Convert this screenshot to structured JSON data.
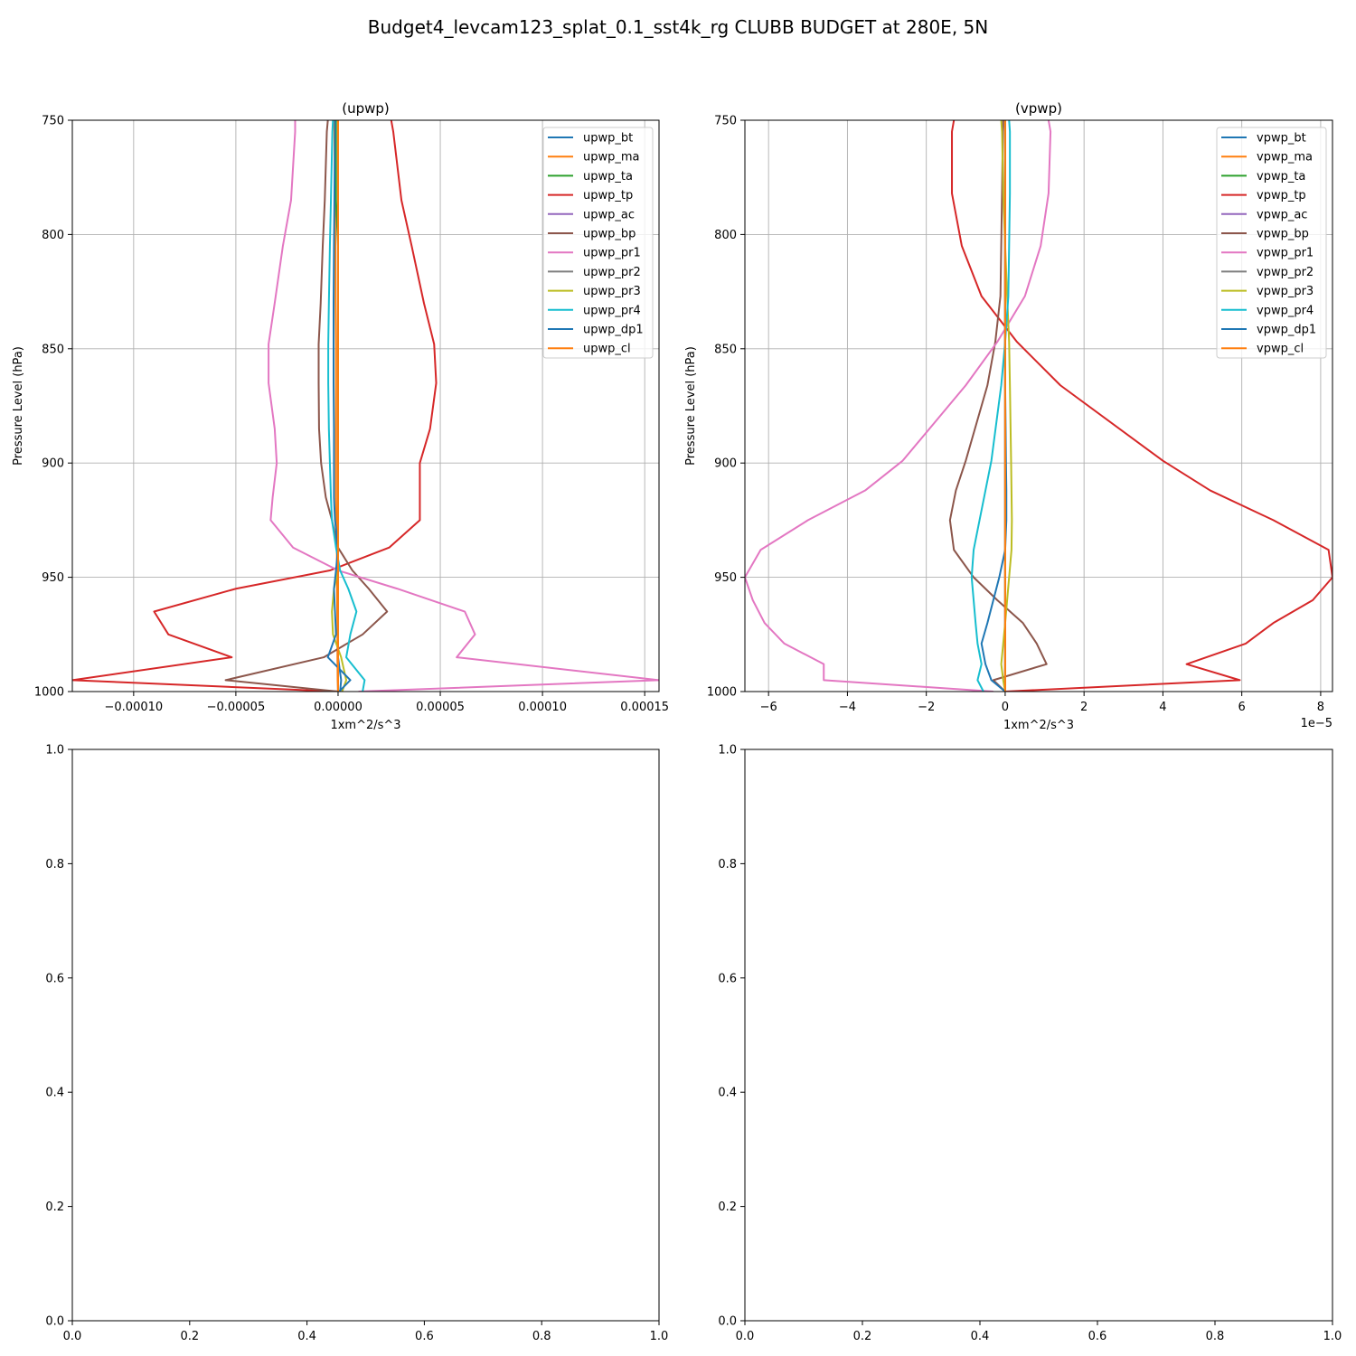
{
  "figure": {
    "suptitle": "Budget4_levcam123_splat_0.1_sst4k_rg CLUBB BUDGET at 280E, 5N"
  },
  "chart_data": [
    {
      "type": "line",
      "title": "(upwp)",
      "xlabel": "1xm^2/s^3",
      "ylabel": "Pressure Level (hPa)",
      "x_offset_label": "",
      "xlim": [
        -0.00013,
        0.000157
      ],
      "ylim": [
        1000,
        750
      ],
      "y_inverted": true,
      "xticks": [
        -0.0001,
        -5e-05,
        0,
        5e-05,
        0.0001,
        0.00015
      ],
      "xtick_labels": [
        "−0.00010",
        "−0.00005",
        "0.00000",
        "0.00005",
        "0.00010",
        "0.00015"
      ],
      "yticks": [
        750,
        800,
        850,
        900,
        950,
        1000
      ],
      "ytick_labels": [
        "750",
        "800",
        "850",
        "900",
        "950",
        "1000"
      ],
      "grid": true,
      "legend_position": "upper right",
      "levels": [
        750,
        755,
        785,
        805,
        830,
        848,
        865,
        885,
        900,
        915,
        925,
        937,
        947,
        955,
        965,
        975,
        985,
        995,
        1000
      ],
      "series": [
        {
          "name": "upwp_bt",
          "color": "#1f77b4",
          "values": [
            0,
            0,
            0,
            0,
            0,
            0,
            0,
            0,
            0,
            0,
            0,
            0,
            0,
            0,
            0,
            0,
            0,
            1.5e-06,
            1e-06
          ]
        },
        {
          "name": "upwp_ma",
          "color": "#ff7f0e",
          "values": [
            -2e-06,
            -1.8e-06,
            -1.5e-06,
            -1.3e-06,
            -1.2e-06,
            -1e-06,
            -1e-06,
            -1e-06,
            -1e-06,
            -1e-06,
            -8e-07,
            -6e-07,
            -5e-07,
            -5e-07,
            -4e-07,
            -3e-07,
            -3e-07,
            -2e-07,
            0
          ]
        },
        {
          "name": "upwp_ta",
          "color": "#2ca02c",
          "values": [
            -1e-06,
            -1e-06,
            -1e-06,
            0,
            0,
            0,
            0,
            0,
            0,
            0,
            0,
            0,
            0,
            0,
            0,
            0,
            0,
            0,
            0
          ]
        },
        {
          "name": "upwp_tp",
          "color": "#d62728",
          "values": [
            2.6e-05,
            2.7e-05,
            3.1e-05,
            3.6e-05,
            4.2e-05,
            4.7e-05,
            4.8e-05,
            4.5e-05,
            4e-05,
            4e-05,
            4e-05,
            2.5e-05,
            -4e-06,
            -5e-05,
            -9e-05,
            -8.3e-05,
            -5.2e-05,
            -0.00013,
            0
          ]
        },
        {
          "name": "upwp_ac",
          "color": "#9467bd",
          "values": [
            0,
            0,
            0,
            0,
            0,
            0,
            0,
            0,
            0,
            0,
            0,
            0,
            0,
            0,
            0,
            0,
            0,
            0,
            0
          ]
        },
        {
          "name": "upwp_bp",
          "color": "#8c564b",
          "values": [
            -5e-06,
            -5.5e-06,
            -6.5e-06,
            -7.5e-06,
            -8.5e-06,
            -9.5e-06,
            -9.5e-06,
            -9.3e-06,
            -8.3e-06,
            -6e-06,
            -3e-06,
            0,
            7e-06,
            1.5e-05,
            2.4e-05,
            1.2e-05,
            -7e-06,
            -5.5e-05,
            0
          ]
        },
        {
          "name": "upwp_pr1",
          "color": "#e377c2",
          "values": [
            -2.1e-05,
            -2.1e-05,
            -2.3e-05,
            -2.7e-05,
            -3.1e-05,
            -3.4e-05,
            -3.4e-05,
            -3.1e-05,
            -3e-05,
            -3.2e-05,
            -3.3e-05,
            -2.2e-05,
            0,
            2.9e-05,
            6.2e-05,
            6.7e-05,
            5.8e-05,
            0.000157,
            1e-05
          ]
        },
        {
          "name": "upwp_pr2",
          "color": "#7f7f7f",
          "values": [
            0,
            0,
            0,
            0,
            0,
            0,
            0,
            0,
            0,
            0,
            0,
            0,
            0,
            0,
            0,
            0,
            0,
            0,
            0
          ]
        },
        {
          "name": "upwp_pr3",
          "color": "#bcbd22",
          "values": [
            0,
            0,
            0,
            0,
            0,
            0,
            0,
            0,
            0,
            0,
            0,
            0,
            0,
            -2e-06,
            -3e-06,
            -2.5e-06,
            1.5e-06,
            4e-06,
            2e-06
          ]
        },
        {
          "name": "upwp_pr4",
          "color": "#17becf",
          "values": [
            -2.5e-06,
            -2.8e-06,
            -3.5e-06,
            -4e-06,
            -4.5e-06,
            -4.8e-06,
            -4.8e-06,
            -4.5e-06,
            -4e-06,
            -3.5e-06,
            -3e-06,
            -1e-06,
            1e-06,
            5e-06,
            9e-06,
            6e-06,
            4e-06,
            1.3e-05,
            1.2e-05
          ]
        },
        {
          "name": "upwp_dp1",
          "color": "#1f77b4",
          "values": [
            -1.5e-06,
            -1.5e-06,
            -1.8e-06,
            -2e-06,
            -2.2e-06,
            -2.2e-06,
            -2.2e-06,
            -2e-06,
            -2e-06,
            -2e-06,
            -1.5e-06,
            0,
            -1e-06,
            -2e-06,
            -1.5e-06,
            -1e-06,
            -5e-06,
            6e-06,
            5e-07
          ]
        },
        {
          "name": "upwp_cl",
          "color": "#ff7f0e",
          "values": [
            0,
            0,
            0,
            0,
            0,
            0,
            0,
            0,
            0,
            0,
            0,
            0,
            0,
            0,
            0,
            0,
            0,
            0,
            0
          ]
        }
      ]
    },
    {
      "type": "line",
      "title": "(vpwp)",
      "xlabel": "1xm^2/s^3",
      "ylabel": "Pressure Level (hPa)",
      "x_offset_label": "1e−5",
      "xlim": [
        -6.6,
        8.3
      ],
      "ylim": [
        1000,
        750
      ],
      "y_inverted": true,
      "x_scale_note": "x values in units of 1e-5",
      "xticks": [
        -6,
        -4,
        -2,
        0,
        2,
        4,
        6,
        8
      ],
      "xtick_labels": [
        "−6",
        "−4",
        "−2",
        "0",
        "2",
        "4",
        "6",
        "8"
      ],
      "yticks": [
        750,
        800,
        850,
        900,
        950,
        1000
      ],
      "ytick_labels": [
        "750",
        "800",
        "850",
        "900",
        "950",
        "1000"
      ],
      "grid": true,
      "legend_position": "upper right",
      "levels": [
        750,
        755,
        782,
        805,
        827,
        847,
        866,
        899,
        912,
        925,
        938,
        950,
        960,
        970,
        979,
        988,
        995,
        1000
      ],
      "series": [
        {
          "name": "vpwp_bt",
          "color": "#1f77b4",
          "values": [
            0,
            0,
            0,
            0,
            0,
            0,
            0,
            0,
            0,
            0,
            0,
            0,
            0,
            0,
            0,
            0,
            0,
            0
          ]
        },
        {
          "name": "vpwp_ma",
          "color": "#ff7f0e",
          "values": [
            0,
            0,
            0,
            0,
            0,
            0,
            0,
            0,
            0,
            0,
            0,
            0,
            0,
            0,
            0,
            0,
            0,
            0
          ]
        },
        {
          "name": "vpwp_ta",
          "color": "#2ca02c",
          "values": [
            0,
            0,
            0,
            0,
            0,
            0,
            0,
            0,
            0,
            0,
            0,
            0,
            0,
            0,
            0,
            0,
            0,
            0
          ]
        },
        {
          "name": "vpwp_tp",
          "color": "#d62728",
          "values": [
            -1.3,
            -1.35,
            -1.35,
            -1.1,
            -0.6,
            0.3,
            1.4,
            4.0,
            5.2,
            6.8,
            8.2,
            8.3,
            7.8,
            6.8,
            6.1,
            4.6,
            5.95,
            0.0
          ]
        },
        {
          "name": "vpwp_ac",
          "color": "#9467bd",
          "values": [
            0,
            0,
            0,
            0,
            0,
            0,
            0,
            0,
            0,
            0,
            0,
            0,
            0,
            0,
            0,
            0,
            0,
            0
          ]
        },
        {
          "name": "vpwp_bp",
          "color": "#8c564b",
          "values": [
            -0.05,
            -0.06,
            -0.08,
            -0.1,
            -0.12,
            -0.25,
            -0.45,
            -1.0,
            -1.25,
            -1.4,
            -1.3,
            -0.8,
            -0.2,
            0.45,
            0.8,
            1.05,
            -0.3,
            0
          ]
        },
        {
          "name": "vpwp_pr1",
          "color": "#e377c2",
          "values": [
            1.1,
            1.15,
            1.1,
            0.9,
            0.5,
            -0.2,
            -1.0,
            -2.6,
            -3.55,
            -5.0,
            -6.2,
            -6.6,
            -6.4,
            -6.1,
            -5.6,
            -4.6,
            -4.6,
            -0.3
          ]
        },
        {
          "name": "vpwp_pr2",
          "color": "#7f7f7f",
          "values": [
            0,
            0,
            0,
            0,
            0,
            0,
            0,
            0,
            0,
            0,
            0,
            0,
            0,
            0,
            0,
            0,
            0,
            0
          ]
        },
        {
          "name": "vpwp_pr3",
          "color": "#bcbd22",
          "values": [
            -0.1,
            -0.08,
            -0.05,
            0,
            0.05,
            0.1,
            0.12,
            0.15,
            0.16,
            0.17,
            0.16,
            0.1,
            0.05,
            0,
            -0.05,
            -0.1,
            -0.05,
            0
          ]
        },
        {
          "name": "vpwp_pr4",
          "color": "#17becf",
          "values": [
            0.1,
            0.12,
            0.12,
            0.1,
            0.08,
            0,
            -0.1,
            -0.35,
            -0.5,
            -0.65,
            -0.8,
            -0.85,
            -0.8,
            -0.75,
            -0.7,
            -0.6,
            -0.7,
            -0.55
          ]
        },
        {
          "name": "vpwp_dp1",
          "color": "#1f77b4",
          "values": [
            0,
            0,
            0,
            0,
            0,
            0,
            0,
            0.02,
            0.03,
            0.03,
            0,
            -0.15,
            -0.3,
            -0.45,
            -0.6,
            -0.5,
            -0.35,
            0
          ]
        },
        {
          "name": "vpwp_cl",
          "color": "#ff7f0e",
          "values": [
            0,
            0,
            0,
            0,
            0,
            0,
            0,
            0,
            0,
            0,
            0,
            0,
            0,
            0,
            0,
            0,
            0,
            0
          ]
        }
      ]
    },
    {
      "type": "line",
      "title": "",
      "xlabel": "",
      "ylabel": "",
      "xlim": [
        0,
        1
      ],
      "ylim": [
        0,
        1
      ],
      "xticks": [
        0,
        0.2,
        0.4,
        0.6,
        0.8,
        1.0
      ],
      "xtick_labels": [
        "0.0",
        "0.2",
        "0.4",
        "0.6",
        "0.8",
        "1.0"
      ],
      "yticks": [
        0,
        0.2,
        0.4,
        0.6,
        0.8,
        1.0
      ],
      "ytick_labels": [
        "0.0",
        "0.2",
        "0.4",
        "0.6",
        "0.8",
        "1.0"
      ],
      "grid": false,
      "series": []
    },
    {
      "type": "line",
      "title": "",
      "xlabel": "",
      "ylabel": "",
      "xlim": [
        0,
        1
      ],
      "ylim": [
        0,
        1
      ],
      "xticks": [
        0,
        0.2,
        0.4,
        0.6,
        0.8,
        1.0
      ],
      "xtick_labels": [
        "0.0",
        "0.2",
        "0.4",
        "0.6",
        "0.8",
        "1.0"
      ],
      "yticks": [
        0,
        0.2,
        0.4,
        0.6,
        0.8,
        1.0
      ],
      "ytick_labels": [
        "0.0",
        "0.2",
        "0.4",
        "0.6",
        "0.8",
        "1.0"
      ],
      "grid": false,
      "series": []
    }
  ]
}
